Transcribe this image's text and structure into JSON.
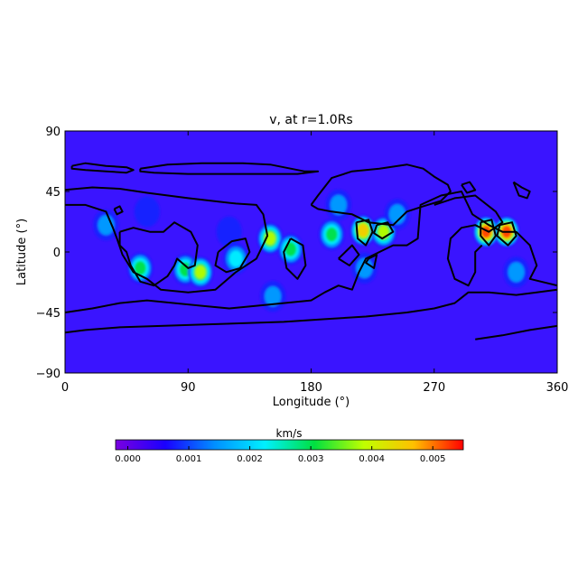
{
  "chart_data": {
    "type": "heatmap",
    "title": "v, at r=1.0Rs",
    "xlabel": "Longitude (°)",
    "ylabel": "Latitude (°)",
    "xlim": [
      0,
      360
    ],
    "ylim": [
      -90,
      90
    ],
    "x_ticks": [
      0,
      90,
      180,
      270,
      360
    ],
    "y_ticks": [
      90,
      45,
      0,
      -45,
      -90
    ],
    "background_color": "#3a14ff",
    "colorbar": {
      "label": "km/s",
      "range": [
        -0.0002,
        0.0055
      ],
      "ticks": [
        "0.000",
        "0.001",
        "0.002",
        "0.003",
        "0.004",
        "0.005"
      ],
      "tick_values": [
        0.0,
        0.001,
        0.002,
        0.003,
        0.004,
        0.005
      ],
      "colors": [
        "#7a00e0",
        "#1a00ff",
        "#0090ff",
        "#00f0ff",
        "#00e040",
        "#c0ff00",
        "#ffc000",
        "#ff0000"
      ]
    },
    "hotspots": [
      {
        "lon": 30,
        "lat": 20,
        "value": 0.002
      },
      {
        "lon": 55,
        "lat": -12,
        "value": 0.0035
      },
      {
        "lon": 88,
        "lat": -13,
        "value": 0.003
      },
      {
        "lon": 99,
        "lat": -15,
        "value": 0.0038
      },
      {
        "lon": 125,
        "lat": -5,
        "value": 0.0025
      },
      {
        "lon": 150,
        "lat": 10,
        "value": 0.004
      },
      {
        "lon": 152,
        "lat": -33,
        "value": 0.002
      },
      {
        "lon": 165,
        "lat": 2,
        "value": 0.003
      },
      {
        "lon": 195,
        "lat": 13,
        "value": 0.003
      },
      {
        "lon": 218,
        "lat": 16,
        "value": 0.005
      },
      {
        "lon": 233,
        "lat": 15,
        "value": 0.004
      },
      {
        "lon": 243,
        "lat": 28,
        "value": 0.002
      },
      {
        "lon": 219,
        "lat": -12,
        "value": 0.002
      },
      {
        "lon": 308,
        "lat": 15,
        "value": 0.0055
      },
      {
        "lon": 323,
        "lat": 15,
        "value": 0.0055
      },
      {
        "lon": 330,
        "lat": -15,
        "value": 0.002
      },
      {
        "lon": 200,
        "lat": 35,
        "value": 0.0015
      },
      {
        "lon": 120,
        "lat": 15,
        "value": 0.0012
      },
      {
        "lon": 60,
        "lat": 30,
        "value": 0.0012
      }
    ],
    "contours": [
      [
        [
          5,
          64
        ],
        [
          15,
          66
        ],
        [
          30,
          64
        ],
        [
          45,
          63
        ],
        [
          50,
          61
        ],
        [
          45,
          59
        ],
        [
          30,
          60
        ],
        [
          15,
          61
        ],
        [
          5,
          62
        ],
        [
          5,
          64
        ]
      ],
      [
        [
          55,
          62
        ],
        [
          75,
          65
        ],
        [
          100,
          66
        ],
        [
          130,
          66
        ],
        [
          150,
          65
        ],
        [
          165,
          62
        ],
        [
          175,
          60
        ],
        [
          185,
          60
        ],
        [
          170,
          58
        ],
        [
          150,
          58
        ],
        [
          120,
          58
        ],
        [
          90,
          58
        ],
        [
          65,
          59
        ],
        [
          55,
          60
        ],
        [
          55,
          62
        ]
      ],
      [
        [
          -2,
          46
        ],
        [
          20,
          48
        ],
        [
          40,
          47
        ],
        [
          60,
          44
        ],
        [
          90,
          40
        ],
        [
          125,
          36
        ],
        [
          140,
          35
        ],
        [
          145,
          28
        ],
        [
          148,
          12
        ],
        [
          140,
          -5
        ],
        [
          125,
          -15
        ],
        [
          110,
          -28
        ],
        [
          90,
          -30
        ],
        [
          70,
          -28
        ],
        [
          60,
          -20
        ],
        [
          50,
          -15
        ],
        [
          42,
          -2
        ],
        [
          38,
          10
        ],
        [
          35,
          18
        ],
        [
          30,
          30
        ],
        [
          15,
          35
        ],
        [
          0,
          35
        ]
      ],
      [
        [
          40,
          15
        ],
        [
          50,
          18
        ],
        [
          62,
          15
        ],
        [
          72,
          15
        ],
        [
          80,
          22
        ],
        [
          92,
          15
        ],
        [
          97,
          5
        ],
        [
          95,
          -10
        ],
        [
          90,
          -12
        ],
        [
          82,
          -5
        ],
        [
          80,
          -10
        ],
        [
          75,
          -18
        ],
        [
          65,
          -25
        ],
        [
          55,
          -22
        ],
        [
          48,
          -10
        ],
        [
          45,
          0
        ],
        [
          40,
          5
        ],
        [
          40,
          15
        ]
      ],
      [
        [
          112,
          0
        ],
        [
          122,
          8
        ],
        [
          132,
          10
        ],
        [
          135,
          0
        ],
        [
          128,
          -12
        ],
        [
          118,
          -15
        ],
        [
          110,
          -10
        ],
        [
          112,
          0
        ]
      ],
      [
        [
          165,
          10
        ],
        [
          174,
          5
        ],
        [
          176,
          -10
        ],
        [
          170,
          -20
        ],
        [
          162,
          -12
        ],
        [
          160,
          0
        ],
        [
          165,
          10
        ]
      ],
      [
        [
          0,
          -45
        ],
        [
          20,
          -42
        ],
        [
          40,
          -38
        ],
        [
          60,
          -36
        ],
        [
          80,
          -38
        ],
        [
          100,
          -40
        ],
        [
          120,
          -42
        ],
        [
          140,
          -40
        ],
        [
          160,
          -38
        ],
        [
          180,
          -36
        ],
        [
          190,
          -30
        ],
        [
          200,
          -25
        ],
        [
          210,
          -28
        ],
        [
          215,
          -15
        ],
        [
          220,
          -5
        ],
        [
          230,
          0
        ],
        [
          240,
          5
        ],
        [
          250,
          5
        ],
        [
          258,
          10
        ],
        [
          260,
          35
        ],
        [
          275,
          42
        ],
        [
          290,
          45
        ],
        [
          298,
          28
        ],
        [
          310,
          20
        ],
        [
          320,
          15
        ],
        [
          330,
          15
        ],
        [
          340,
          5
        ],
        [
          345,
          -10
        ],
        [
          340,
          -20
        ],
        [
          360,
          -25
        ]
      ],
      [
        [
          180,
          35
        ],
        [
          185,
          42
        ],
        [
          195,
          55
        ],
        [
          210,
          60
        ],
        [
          230,
          62
        ],
        [
          250,
          65
        ],
        [
          262,
          62
        ],
        [
          270,
          56
        ],
        [
          280,
          50
        ],
        [
          282,
          45
        ],
        [
          275,
          38
        ],
        [
          262,
          34
        ],
        [
          250,
          30
        ],
        [
          240,
          20
        ],
        [
          222,
          22
        ],
        [
          210,
          28
        ],
        [
          195,
          30
        ],
        [
          185,
          32
        ],
        [
          180,
          35
        ]
      ],
      [
        [
          270,
          35
        ],
        [
          285,
          40
        ],
        [
          300,
          42
        ],
        [
          315,
          30
        ],
        [
          320,
          22
        ],
        [
          310,
          15
        ],
        [
          300,
          20
        ],
        [
          290,
          18
        ],
        [
          282,
          10
        ],
        [
          280,
          -5
        ],
        [
          285,
          -20
        ],
        [
          295,
          -25
        ],
        [
          300,
          -15
        ],
        [
          300,
          0
        ],
        [
          305,
          5
        ]
      ],
      [
        [
          0,
          -60
        ],
        [
          15,
          -58
        ],
        [
          40,
          -56
        ],
        [
          70,
          -55
        ],
        [
          100,
          -54
        ],
        [
          130,
          -53
        ],
        [
          160,
          -52
        ],
        [
          190,
          -50
        ],
        [
          220,
          -48
        ],
        [
          250,
          -45
        ],
        [
          270,
          -42
        ],
        [
          285,
          -38
        ],
        [
          295,
          -30
        ],
        [
          310,
          -30
        ],
        [
          330,
          -32
        ],
        [
          345,
          -30
        ],
        [
          360,
          -28
        ]
      ],
      [
        [
          300,
          -65
        ],
        [
          320,
          -62
        ],
        [
          340,
          -58
        ],
        [
          360,
          -55
        ]
      ],
      [
        [
          328,
          52
        ],
        [
          334,
          48
        ],
        [
          340,
          45
        ],
        [
          338,
          40
        ],
        [
          332,
          42
        ],
        [
          328,
          52
        ]
      ],
      [
        [
          290,
          50
        ],
        [
          296,
          52
        ],
        [
          300,
          46
        ],
        [
          294,
          44
        ],
        [
          290,
          50
        ]
      ],
      [
        [
          213,
          22
        ],
        [
          222,
          24
        ],
        [
          225,
          15
        ],
        [
          220,
          5
        ],
        [
          214,
          10
        ],
        [
          213,
          22
        ]
      ],
      [
        [
          228,
          20
        ],
        [
          236,
          22
        ],
        [
          240,
          15
        ],
        [
          232,
          10
        ],
        [
          226,
          14
        ],
        [
          228,
          20
        ]
      ],
      [
        [
          304,
          22
        ],
        [
          312,
          24
        ],
        [
          315,
          12
        ],
        [
          310,
          5
        ],
        [
          304,
          12
        ],
        [
          304,
          22
        ]
      ],
      [
        [
          318,
          20
        ],
        [
          327,
          22
        ],
        [
          330,
          12
        ],
        [
          324,
          5
        ],
        [
          316,
          12
        ],
        [
          318,
          20
        ]
      ],
      [
        [
          36,
          32
        ],
        [
          40,
          34
        ],
        [
          42,
          30
        ],
        [
          38,
          28
        ],
        [
          36,
          32
        ]
      ],
      [
        [
          200,
          -5
        ],
        [
          210,
          5
        ],
        [
          215,
          -2
        ],
        [
          208,
          -10
        ],
        [
          200,
          -5
        ]
      ],
      [
        [
          222,
          -5
        ],
        [
          228,
          -2
        ],
        [
          226,
          -12
        ],
        [
          220,
          -8
        ],
        [
          222,
          -5
        ]
      ]
    ]
  }
}
